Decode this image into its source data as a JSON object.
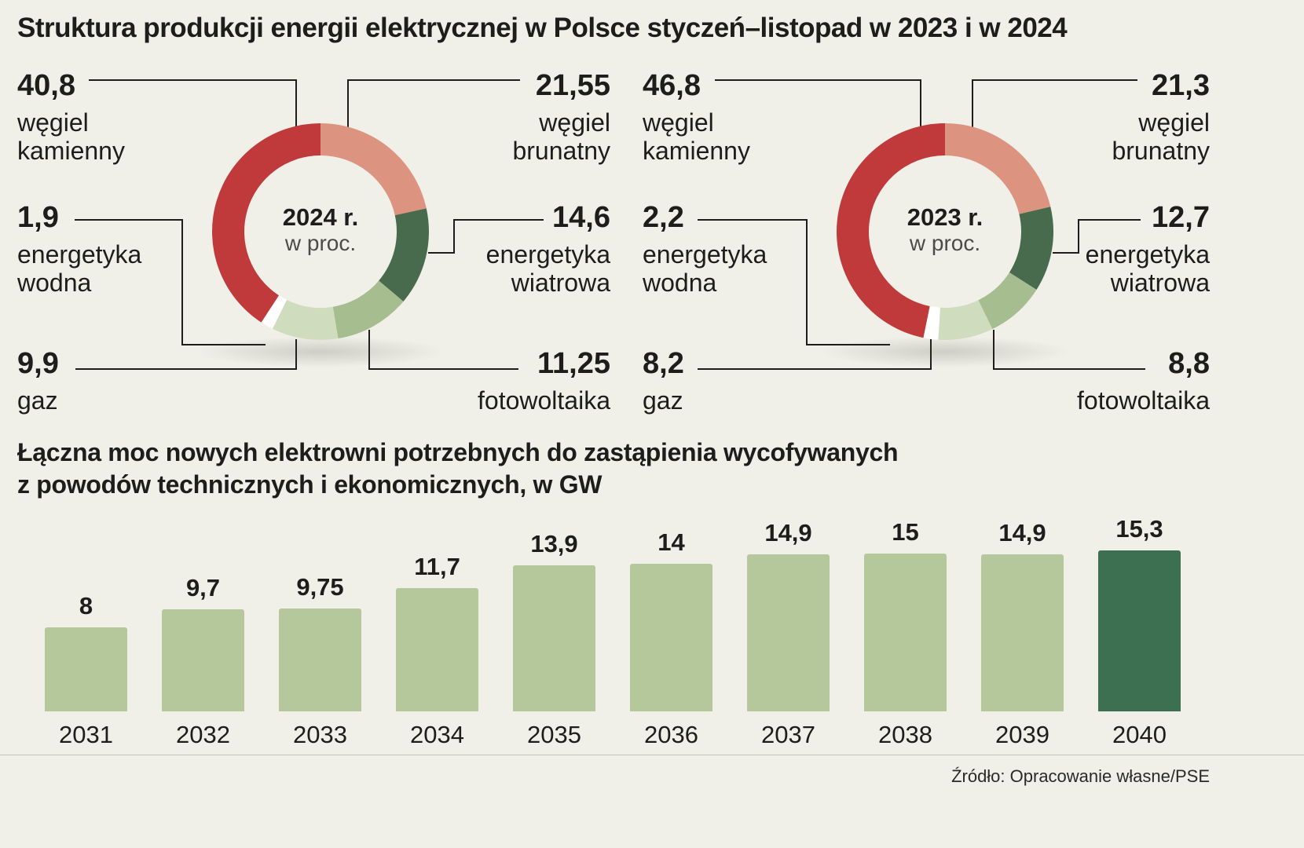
{
  "title": "Struktura produkcji energii elektrycznej w Polsce styczeń–listopad w 2023 i w 2024",
  "source": "Źródło: Opracowanie własne/PSE",
  "colors": {
    "background": "#f0f0e9",
    "hard_coal": "#c03a3c",
    "lignite": "#dc9480",
    "wind": "#486b4e",
    "solar": "#a6bd90",
    "gas": "#cfdcbe",
    "hydro": "#ffffff",
    "bar": "#b5c89c",
    "bar_highlight": "#3c7050",
    "text": "#1d1d1b"
  },
  "chart_data": [
    {
      "type": "pie",
      "title": "2024 r.",
      "subtitle": "w proc.",
      "unit": "percent",
      "segments": [
        {
          "label": "węgiel brunatny",
          "value": 21.55,
          "display": "21,55",
          "color_key": "lignite",
          "pos": "top-right"
        },
        {
          "label": "energetyka wiatrowa",
          "value": 14.6,
          "display": "14,6",
          "color_key": "wind",
          "pos": "mid-right"
        },
        {
          "label": "fotowoltaika",
          "value": 11.25,
          "display": "11,25",
          "color_key": "solar",
          "pos": "bottom-right"
        },
        {
          "label": "gaz",
          "value": 9.9,
          "display": "9,9",
          "color_key": "gas",
          "pos": "bottom-left"
        },
        {
          "label": "energetyka wodna",
          "value": 1.9,
          "display": "1,9",
          "color_key": "hydro",
          "pos": "mid-left"
        },
        {
          "label": "węgiel kamienny",
          "value": 40.8,
          "display": "40,8",
          "color_key": "hard_coal",
          "pos": "top-left"
        }
      ]
    },
    {
      "type": "pie",
      "title": "2023 r.",
      "subtitle": "w proc.",
      "unit": "percent",
      "segments": [
        {
          "label": "węgiel brunatny",
          "value": 21.3,
          "display": "21,3",
          "color_key": "lignite",
          "pos": "top-right"
        },
        {
          "label": "energetyka wiatrowa",
          "value": 12.7,
          "display": "12,7",
          "color_key": "wind",
          "pos": "mid-right"
        },
        {
          "label": "fotowoltaika",
          "value": 8.8,
          "display": "8,8",
          "color_key": "solar",
          "pos": "bottom-right"
        },
        {
          "label": "gaz",
          "value": 8.2,
          "display": "8,2",
          "color_key": "gas",
          "pos": "bottom-left"
        },
        {
          "label": "energetyka wodna",
          "value": 2.2,
          "display": "2,2",
          "color_key": "hydro",
          "pos": "mid-left"
        },
        {
          "label": "węgiel kamienny",
          "value": 46.8,
          "display": "46,8",
          "color_key": "hard_coal",
          "pos": "top-left"
        }
      ]
    },
    {
      "type": "bar",
      "title": "Łączna moc nowych elektrowni potrzebnych do zastąpienia wycofywanych z powodów technicznych i ekonomicznych, w GW",
      "title_lines": [
        "Łączna moc nowych elektrowni potrzebnych do zastąpienia wycofywanych",
        "z powodów technicznych i ekonomicznych, w GW"
      ],
      "categories": [
        "2031",
        "2032",
        "2033",
        "2034",
        "2035",
        "2036",
        "2037",
        "2038",
        "2039",
        "2040"
      ],
      "values": [
        8,
        9.7,
        9.75,
        11.7,
        13.9,
        14,
        14.9,
        15,
        14.9,
        15.3
      ],
      "value_labels": [
        "8",
        "9,7",
        "9,75",
        "11,7",
        "13,9",
        "14",
        "14,9",
        "15",
        "14,9",
        "15,3"
      ],
      "ylabel": "GW",
      "ylim": [
        0,
        16
      ],
      "grid": false,
      "legend": false,
      "highlight_index": 9
    }
  ]
}
